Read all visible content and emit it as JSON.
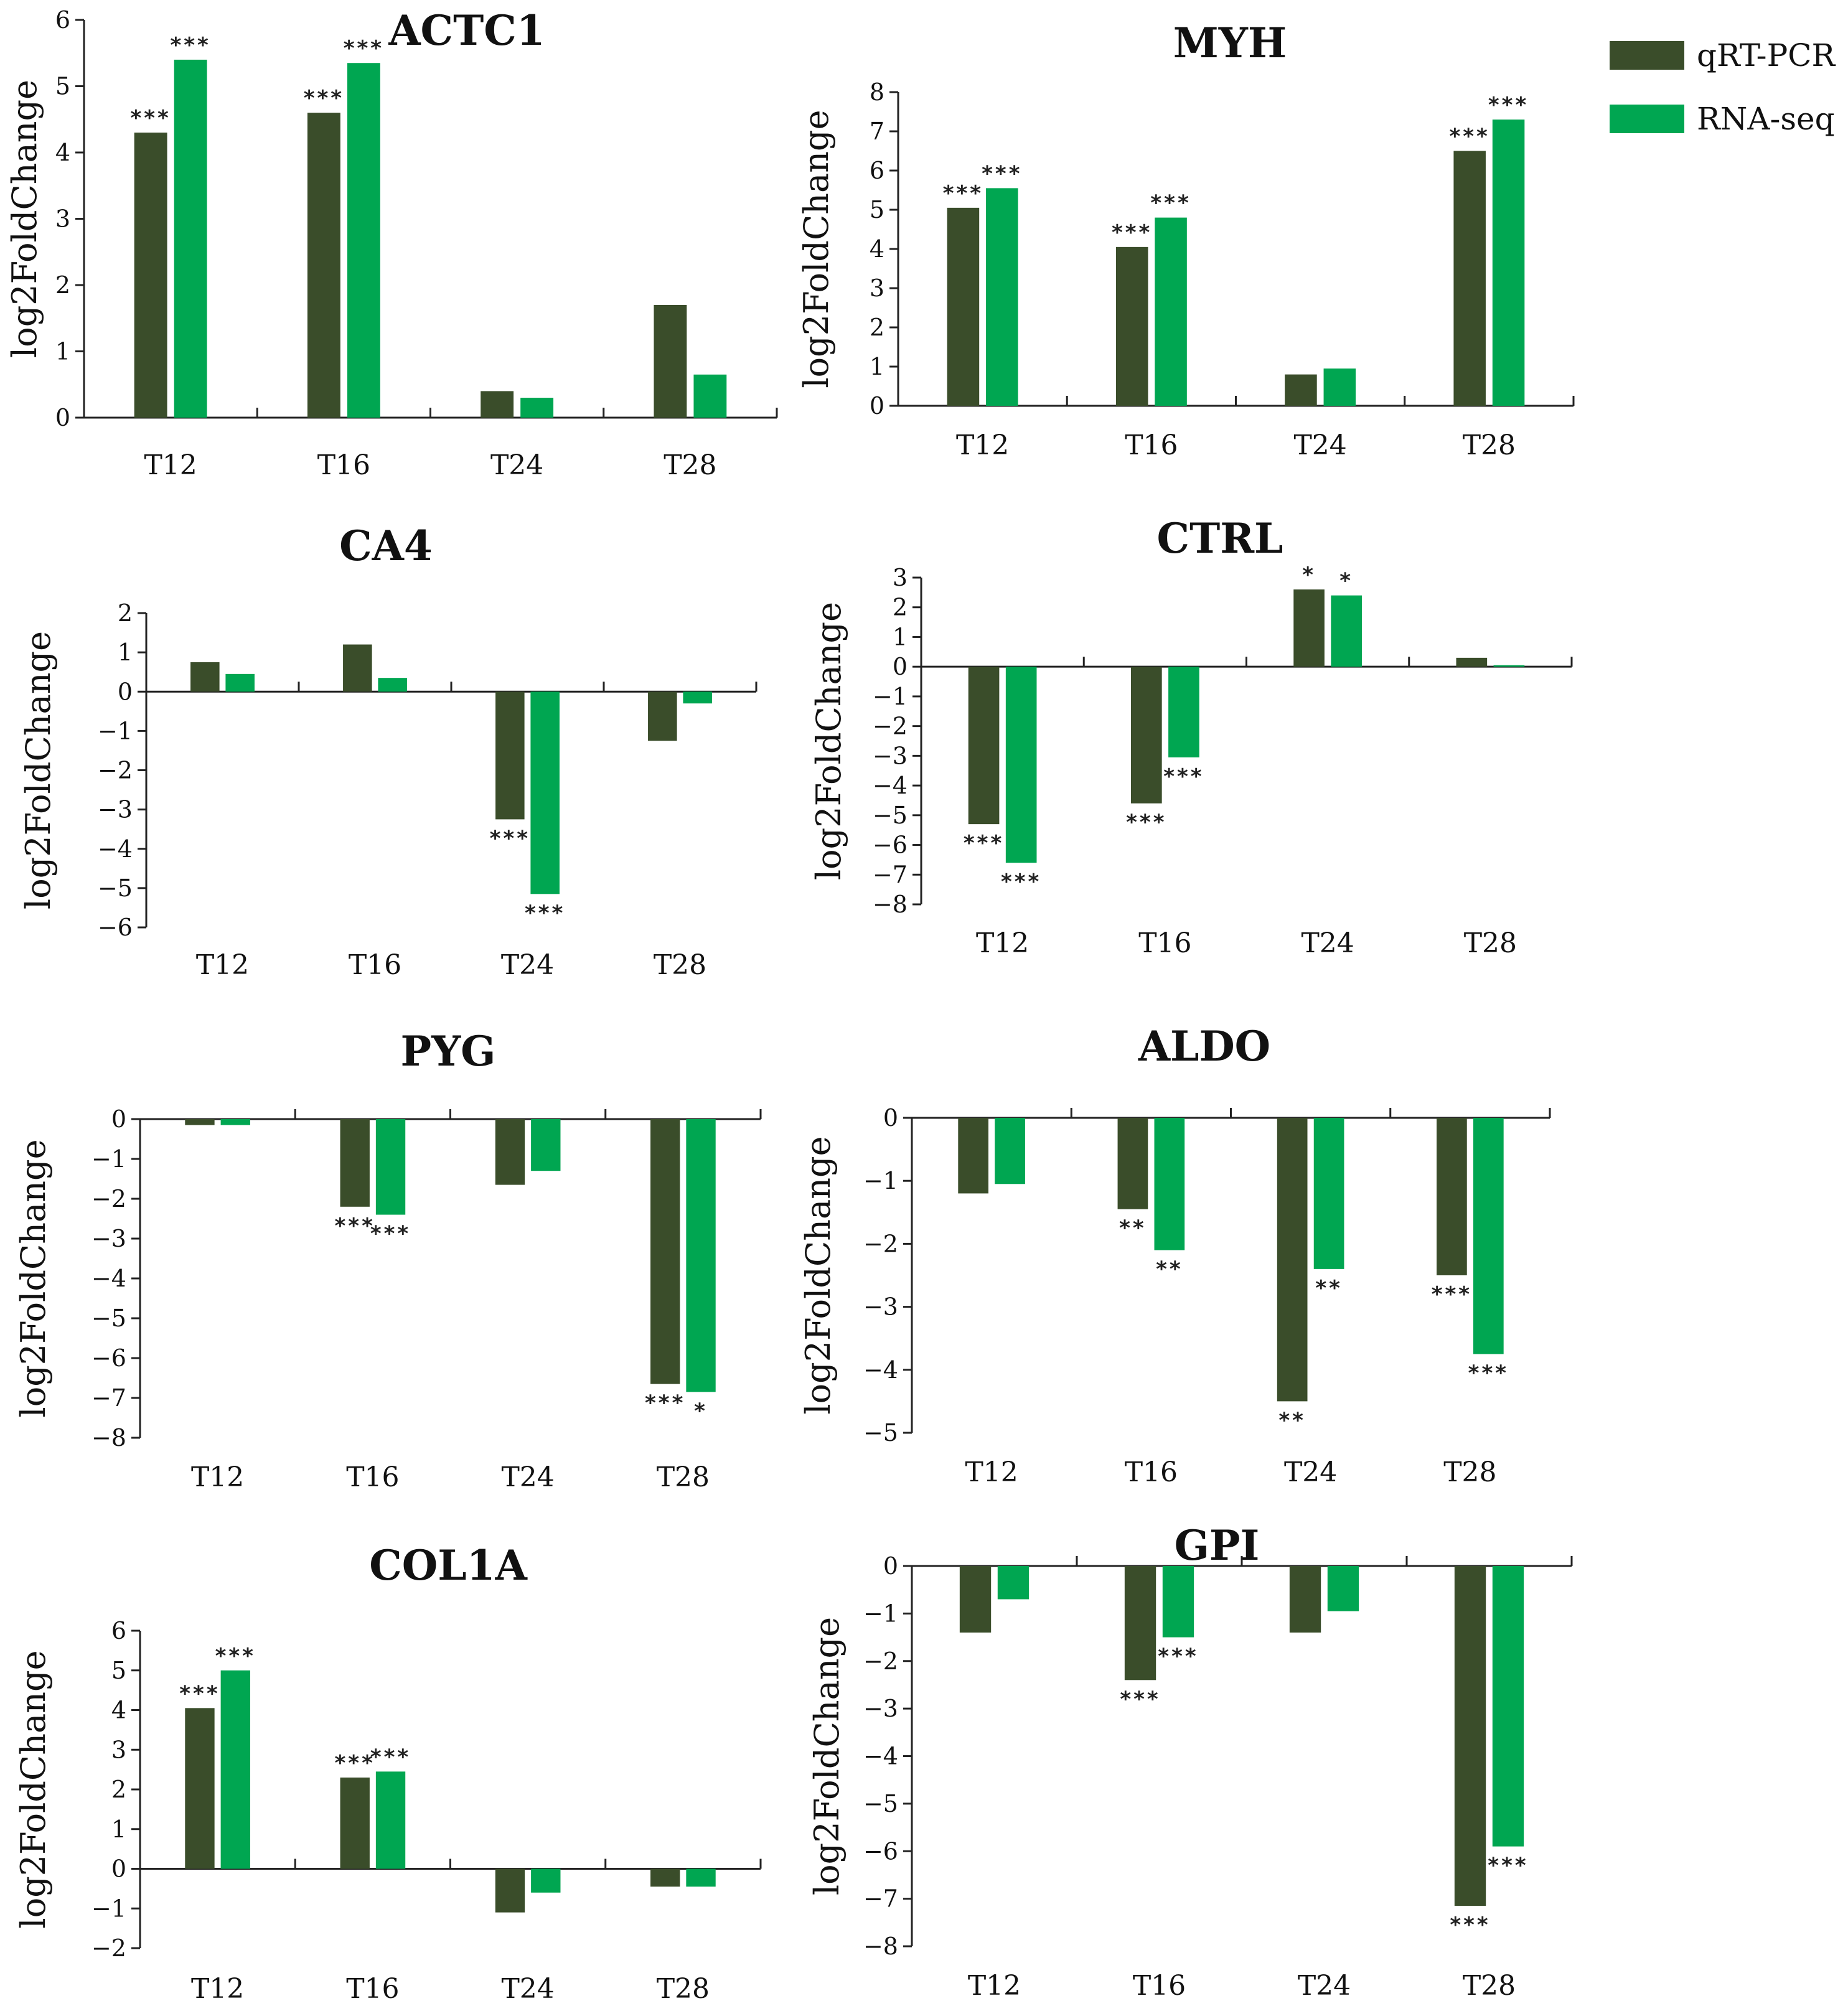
{
  "colors": {
    "qrt": "#3a4d2a",
    "rna": "#00a651"
  },
  "legend": {
    "items": [
      {
        "label": "qRT-PCR",
        "color": "#3a4d2a"
      },
      {
        "label": "RNA-seq",
        "color": "#00a651"
      }
    ]
  },
  "chart_data": [
    {
      "type": "bar",
      "title": "ACTC1",
      "ylabel": "log2FoldChange",
      "categories": [
        "T12",
        "T16",
        "T24",
        "T28"
      ],
      "ylim": [
        0,
        6
      ],
      "yticks": [
        "0",
        "1",
        "2",
        "3",
        "4",
        "5",
        "6"
      ],
      "series": [
        {
          "name": "qRT-PCR",
          "values": [
            4.3,
            4.6,
            0.4,
            1.7
          ],
          "sig": [
            "***",
            "***",
            "",
            ""
          ]
        },
        {
          "name": "RNA-seq",
          "values": [
            5.4,
            5.35,
            0.3,
            0.65
          ],
          "sig": [
            "***",
            "***",
            "",
            ""
          ]
        }
      ]
    },
    {
      "type": "bar",
      "title": "MYH",
      "ylabel": "log2FoldChange",
      "categories": [
        "T12",
        "T16",
        "T24",
        "T28"
      ],
      "ylim": [
        0,
        8
      ],
      "yticks": [
        "0",
        "1",
        "2",
        "3",
        "4",
        "5",
        "6",
        "7",
        "8"
      ],
      "series": [
        {
          "name": "qRT-PCR",
          "values": [
            5.05,
            4.05,
            0.8,
            6.5
          ],
          "sig": [
            "***",
            "***",
            "",
            "***"
          ]
        },
        {
          "name": "RNA-seq",
          "values": [
            5.55,
            4.8,
            0.95,
            7.3
          ],
          "sig": [
            "***",
            "***",
            "",
            "***"
          ]
        }
      ]
    },
    {
      "type": "bar",
      "title": "CA4",
      "ylabel": "log2FoldChange",
      "categories": [
        "T12",
        "T16",
        "T24",
        "T28"
      ],
      "ylim": [
        -6,
        2
      ],
      "yticks": [
        "2",
        "1",
        "0",
        "-1",
        "-2",
        "-3",
        "-4",
        "-5",
        "-6"
      ],
      "series": [
        {
          "name": "qRT-PCR",
          "values": [
            0.75,
            1.2,
            -3.25,
            -1.25
          ],
          "sig": [
            "",
            "",
            "***",
            ""
          ]
        },
        {
          "name": "RNA-seq",
          "values": [
            0.45,
            0.35,
            -5.15,
            -0.3
          ],
          "sig": [
            "",
            "",
            "***",
            ""
          ]
        }
      ]
    },
    {
      "type": "bar",
      "title": "CTRL",
      "ylabel": "log2FoldChange",
      "categories": [
        "T12",
        "T16",
        "T24",
        "T28"
      ],
      "ylim": [
        -8,
        3
      ],
      "yticks": [
        "3",
        "2",
        "1",
        "0",
        "-1",
        "-2",
        "-3",
        "-4",
        "-5",
        "-6",
        "-7",
        "-8"
      ],
      "series": [
        {
          "name": "qRT-PCR",
          "values": [
            -5.3,
            -4.6,
            2.6,
            0.3
          ],
          "sig": [
            "***",
            "***",
            "*",
            ""
          ]
        },
        {
          "name": "RNA-seq",
          "values": [
            -6.6,
            -3.05,
            2.4,
            0.05
          ],
          "sig": [
            "***",
            "***",
            "*",
            ""
          ]
        }
      ]
    },
    {
      "type": "bar",
      "title": "PYG",
      "ylabel": "log2FoldChange",
      "categories": [
        "T12",
        "T16",
        "T24",
        "T28"
      ],
      "ylim": [
        -8,
        0
      ],
      "yticks": [
        "0",
        "-1",
        "-2",
        "-3",
        "-4",
        "-5",
        "-6",
        "-7",
        "-8"
      ],
      "series": [
        {
          "name": "qRT-PCR",
          "values": [
            -0.15,
            -2.2,
            -1.65,
            -6.65
          ],
          "sig": [
            "",
            "***",
            "",
            "***"
          ]
        },
        {
          "name": "RNA-seq",
          "values": [
            -0.15,
            -2.4,
            -1.3,
            -6.85
          ],
          "sig": [
            "",
            "***",
            "",
            "*"
          ]
        }
      ]
    },
    {
      "type": "bar",
      "title": "ALDO",
      "ylabel": "log2FoldChange",
      "categories": [
        "T12",
        "T16",
        "T24",
        "T28"
      ],
      "ylim": [
        -5,
        0
      ],
      "yticks": [
        "0",
        "-1",
        "-2",
        "-3",
        "-4",
        "-5"
      ],
      "series": [
        {
          "name": "qRT-PCR",
          "values": [
            -1.2,
            -1.45,
            -4.5,
            -2.5
          ],
          "sig": [
            "",
            "**",
            "**",
            "***"
          ]
        },
        {
          "name": "RNA-seq",
          "values": [
            -1.05,
            -2.1,
            -2.4,
            -3.75
          ],
          "sig": [
            "",
            "**",
            "**",
            "***"
          ]
        }
      ]
    },
    {
      "type": "bar",
      "title": "COL1A",
      "ylabel": "log2FoldChange",
      "categories": [
        "T12",
        "T16",
        "T24",
        "T28"
      ],
      "ylim": [
        -2,
        6
      ],
      "yticks": [
        "6",
        "5",
        "4",
        "3",
        "2",
        "1",
        "0",
        "-1",
        "-2"
      ],
      "series": [
        {
          "name": "qRT-PCR",
          "values": [
            4.05,
            2.3,
            -1.1,
            -0.45
          ],
          "sig": [
            "***",
            "***",
            "",
            ""
          ]
        },
        {
          "name": "RNA-seq",
          "values": [
            5.0,
            2.45,
            -0.6,
            -0.45
          ],
          "sig": [
            "***",
            "***",
            "",
            ""
          ]
        }
      ]
    },
    {
      "type": "bar",
      "title": "GPI",
      "ylabel": "log2FoldChange",
      "categories": [
        "T12",
        "T16",
        "T24",
        "T28"
      ],
      "ylim": [
        -8,
        0
      ],
      "yticks": [
        "0",
        "-1",
        "-2",
        "-3",
        "-4",
        "-5",
        "-6",
        "-7",
        "-8"
      ],
      "series": [
        {
          "name": "qRT-PCR",
          "values": [
            -1.4,
            -2.4,
            -1.4,
            -7.15
          ],
          "sig": [
            "",
            "***",
            "",
            "***"
          ]
        },
        {
          "name": "RNA-seq",
          "values": [
            -0.7,
            -1.5,
            -0.95,
            -5.9
          ],
          "sig": [
            "",
            "***",
            "",
            "***"
          ]
        }
      ]
    }
  ]
}
